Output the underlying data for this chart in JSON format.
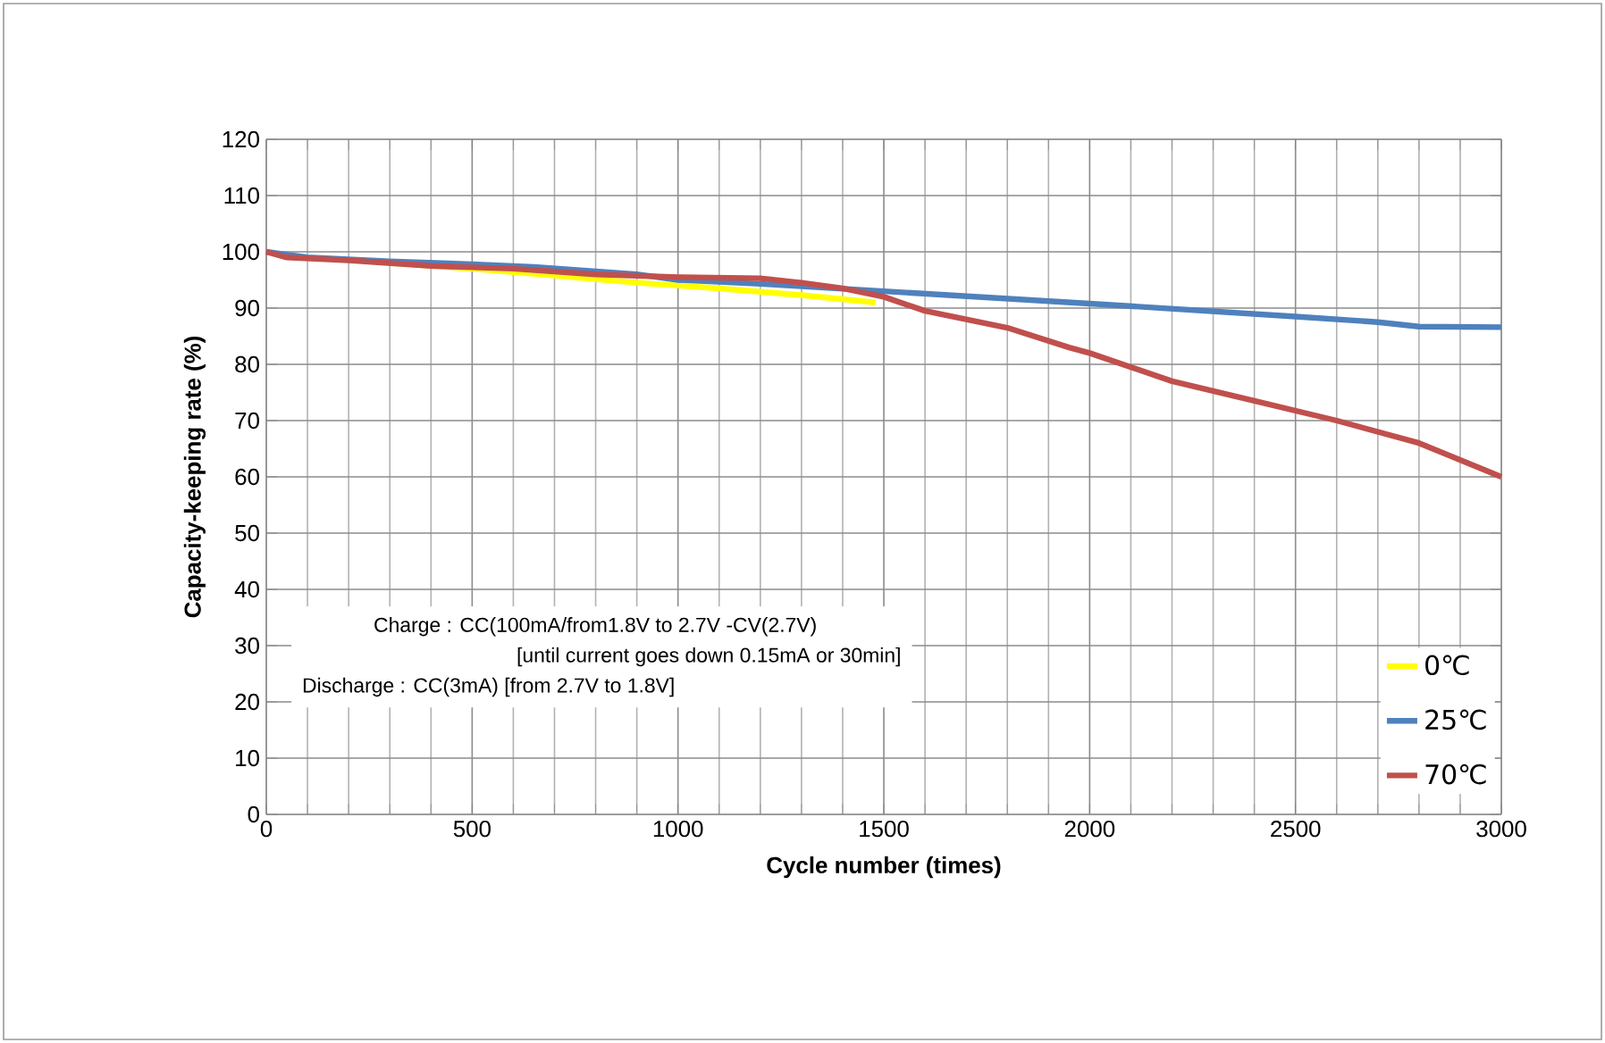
{
  "chart_data": {
    "type": "line",
    "xlabel": "Cycle number (times)",
    "ylabel": "Capacity-keeping rate (%)",
    "xlim": [
      0,
      3000
    ],
    "ylim": [
      0,
      120
    ],
    "xticks": [
      0,
      500,
      1000,
      1500,
      2000,
      2500,
      3000
    ],
    "yticks": [
      0,
      10,
      20,
      30,
      40,
      50,
      60,
      70,
      80,
      90,
      100,
      110,
      120
    ],
    "grid": true,
    "legend": "bottom right",
    "marker": "none",
    "line_style": "solid",
    "annotations": [
      "Charge : CC(100mA/from1.8V to 2.7V -CV(2.7V)",
      "[until current goes down 0.15mA or 30min]",
      "Discharge : CC(3mA) [from 2.7V to 1.8V]"
    ],
    "series": [
      {
        "name": "0℃",
        "color": "#ffff00",
        "x": [
          300,
          500,
          700,
          900,
          1100,
          1300,
          1480
        ],
        "values": [
          98,
          97,
          95.8,
          94.5,
          93.5,
          92.3,
          91
        ]
      },
      {
        "name": "25℃",
        "color": "#4f81bd",
        "x": [
          0,
          50,
          100,
          300,
          500,
          650,
          900,
          1000,
          1200,
          1500,
          2000,
          2500,
          2700,
          2800,
          3000
        ],
        "values": [
          100,
          99.5,
          99,
          98.3,
          97.8,
          97.3,
          96,
          95,
          94.3,
          93,
          90.8,
          88.5,
          87.5,
          86.7,
          86.6
        ]
      },
      {
        "name": "70℃",
        "color": "#c0504d",
        "x": [
          0,
          50,
          200,
          400,
          600,
          800,
          1000,
          1200,
          1300,
          1400,
          1500,
          1600,
          1800,
          1950,
          2000,
          2200,
          2400,
          2600,
          2800,
          3000
        ],
        "values": [
          100,
          99,
          98.5,
          97.5,
          97,
          96,
          95.5,
          95.3,
          94.5,
          93.5,
          92,
          89.5,
          86.5,
          83,
          82,
          77,
          73.5,
          70,
          66,
          60
        ]
      }
    ]
  }
}
